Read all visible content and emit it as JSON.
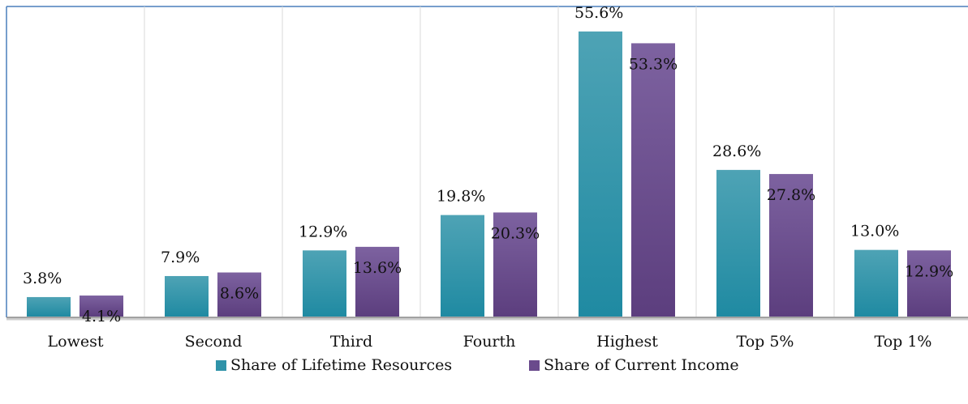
{
  "chart_data": {
    "type": "bar",
    "categories": [
      "Lowest",
      "Second",
      "Third",
      "Fourth",
      "Highest",
      "Top 5%",
      "Top 1%"
    ],
    "series": [
      {
        "name": "Share of Lifetime Resources",
        "color": "#2f93a9",
        "values": [
          3.8,
          7.9,
          12.9,
          19.8,
          55.6,
          28.6,
          13.0
        ],
        "value_labels": [
          "3.8%",
          "7.9%",
          "12.9%",
          "19.8%",
          "55.6%",
          "28.6%",
          "13.0%"
        ]
      },
      {
        "name": "Share of Current Income",
        "color": "#6a4a8c",
        "values": [
          4.1,
          8.6,
          13.6,
          20.3,
          53.3,
          27.8,
          12.9
        ],
        "value_labels": [
          "4.1%",
          "8.6%",
          "13.6%",
          "20.3%",
          "53.3%",
          "27.8%",
          "12.9%"
        ]
      }
    ],
    "ylim": [
      0,
      60
    ],
    "grid": true,
    "legend": "bottom"
  }
}
